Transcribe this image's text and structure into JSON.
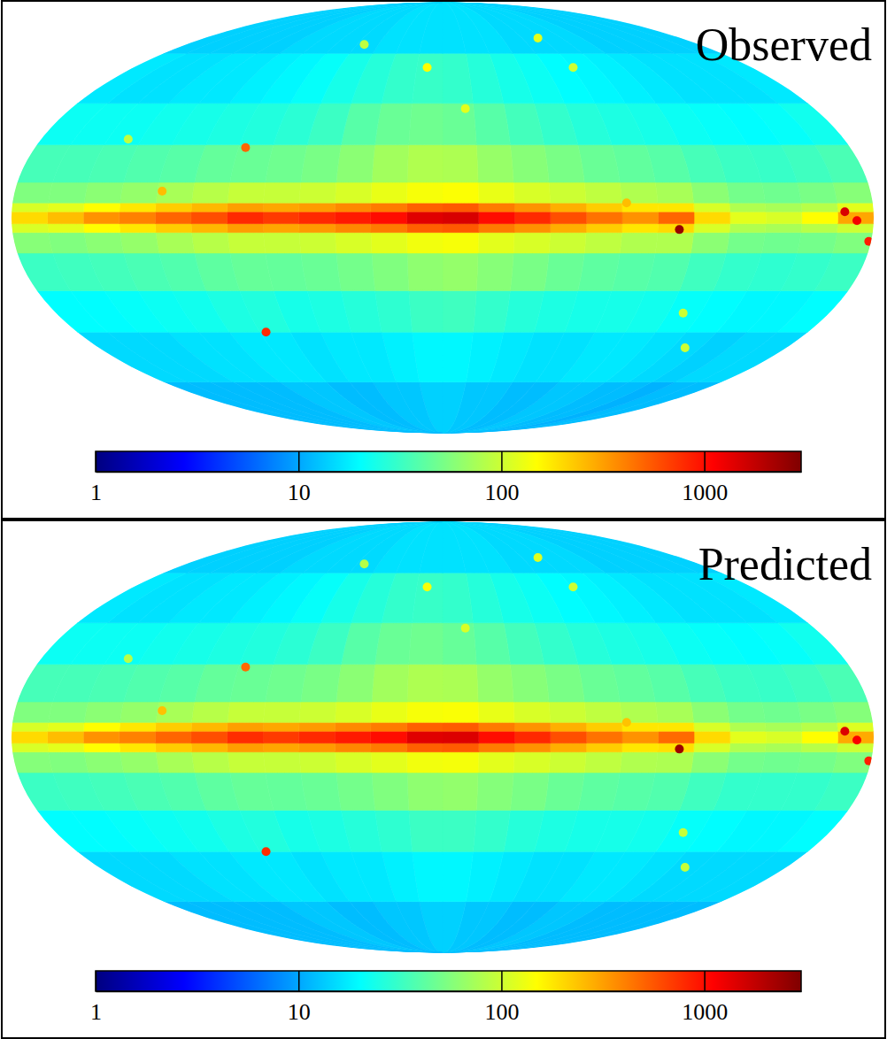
{
  "chart_data": [
    {
      "type": "heatmap",
      "title": "Observed",
      "log": true,
      "lon_edges": [
        -180,
        -165,
        -150,
        -135,
        -120,
        -105,
        -90,
        -75,
        -60,
        -45,
        -30,
        -15,
        0,
        15,
        30,
        45,
        60,
        75,
        90,
        105,
        120,
        135,
        150,
        165,
        180
      ],
      "lat_edges": [
        -90,
        -60,
        -40,
        -25,
        -12,
        -5,
        -2,
        2,
        5,
        12,
        25,
        40,
        60,
        90
      ],
      "cells": [
        [
          12,
          12,
          11,
          12,
          12,
          13,
          13,
          12,
          12,
          13,
          13,
          14,
          14,
          13,
          13,
          12,
          12,
          13,
          13,
          12,
          12,
          12,
          12,
          12
        ],
        [
          15,
          15,
          14,
          15,
          16,
          17,
          17,
          16,
          16,
          17,
          18,
          19,
          19,
          18,
          17,
          17,
          16,
          17,
          17,
          16,
          16,
          15,
          15,
          15
        ],
        [
          20,
          19,
          19,
          20,
          21,
          23,
          24,
          24,
          25,
          27,
          30,
          33,
          32,
          29,
          27,
          25,
          24,
          26,
          25,
          23,
          22,
          21,
          20,
          20
        ],
        [
          32,
          30,
          29,
          30,
          33,
          38,
          40,
          42,
          46,
          52,
          58,
          65,
          62,
          55,
          50,
          46,
          44,
          45,
          42,
          38,
          36,
          34,
          33,
          32
        ],
        [
          55,
          50,
          48,
          50,
          60,
          80,
          80,
          90,
          100,
          110,
          120,
          140,
          135,
          120,
          110,
          100,
          95,
          95,
          85,
          75,
          65,
          60,
          55,
          58
        ],
        [
          100,
          85,
          75,
          80,
          110,
          200,
          180,
          220,
          280,
          350,
          420,
          550,
          520,
          420,
          380,
          330,
          300,
          320,
          260,
          220,
          180,
          150,
          120,
          110
        ],
        [
          300,
          150,
          110,
          120,
          200,
          500,
          350,
          450,
          600,
          800,
          1000,
          1500,
          1400,
          1000,
          900,
          800,
          700,
          800,
          600,
          500,
          400,
          350,
          250,
          200
        ],
        [
          120,
          85,
          75,
          80,
          110,
          180,
          180,
          220,
          280,
          350,
          420,
          550,
          520,
          420,
          380,
          330,
          300,
          320,
          260,
          220,
          180,
          150,
          120,
          110
        ],
        [
          58,
          52,
          48,
          50,
          60,
          75,
          80,
          90,
          100,
          110,
          125,
          145,
          140,
          125,
          110,
          100,
          95,
          95,
          85,
          75,
          65,
          60,
          55,
          55
        ],
        [
          36,
          33,
          31,
          32,
          35,
          40,
          43,
          46,
          52,
          58,
          66,
          78,
          80,
          72,
          60,
          52,
          48,
          46,
          44,
          40,
          38,
          36,
          35,
          35
        ],
        [
          23,
          21,
          20,
          21,
          22,
          24,
          25,
          27,
          30,
          34,
          40,
          46,
          48,
          46,
          40,
          32,
          28,
          26,
          25,
          24,
          23,
          22,
          22,
          22
        ],
        [
          17,
          16,
          16,
          16,
          17,
          18,
          19,
          20,
          22,
          24,
          27,
          30,
          31,
          30,
          27,
          24,
          21,
          19,
          18,
          17,
          17,
          16,
          16,
          17
        ],
        [
          14,
          14,
          14,
          14,
          14,
          15,
          15,
          15,
          15,
          16,
          16,
          16,
          16,
          16,
          16,
          15,
          15,
          15,
          15,
          14,
          14,
          14,
          14,
          14
        ]
      ],
      "sources": [
        {
          "lon": 9,
          "lat": 54,
          "value": 150
        },
        {
          "lon": -11,
          "lat": 38,
          "value": 120
        },
        {
          "lon": -72,
          "lat": 67,
          "value": 120
        },
        {
          "lon": -76,
          "lat": 54,
          "value": 100
        },
        {
          "lon": 87,
          "lat": 24,
          "value": 500
        },
        {
          "lon": 118,
          "lat": 9,
          "value": 250
        },
        {
          "lon": 87,
          "lat": -40,
          "value": 800
        },
        {
          "lon": -77,
          "lat": 5,
          "value": 250
        },
        {
          "lon": -99,
          "lat": -4,
          "value": 2500
        },
        {
          "lon": -168,
          "lat": 2,
          "value": 1500
        },
        {
          "lon": -173,
          "lat": -1,
          "value": 1200
        },
        {
          "lon": -179,
          "lat": -8,
          "value": 900
        },
        {
          "lon": -112,
          "lat": -33,
          "value": 100
        },
        {
          "lon": -127,
          "lat": -46,
          "value": 100
        },
        {
          "lon": 141,
          "lat": 27,
          "value": 90
        },
        {
          "lon": 55,
          "lat": 64,
          "value": 90
        }
      ],
      "colorbar": {
        "range": [
          1,
          3000
        ],
        "ticks": [
          1,
          10,
          100,
          1000
        ]
      }
    },
    {
      "type": "heatmap",
      "title": "Predicted",
      "log": true,
      "lon_edges": [
        -180,
        -165,
        -150,
        -135,
        -120,
        -105,
        -90,
        -75,
        -60,
        -45,
        -30,
        -15,
        0,
        15,
        30,
        45,
        60,
        75,
        90,
        105,
        120,
        135,
        150,
        165,
        180
      ],
      "lat_edges": [
        -90,
        -60,
        -40,
        -25,
        -12,
        -5,
        -2,
        2,
        5,
        12,
        25,
        40,
        60,
        90
      ],
      "cells": [
        [
          12,
          12,
          12,
          12,
          12,
          13,
          13,
          12,
          12,
          13,
          13,
          14,
          14,
          13,
          13,
          12,
          12,
          13,
          13,
          12,
          12,
          12,
          12,
          12
        ],
        [
          15,
          15,
          15,
          15,
          16,
          17,
          17,
          16,
          16,
          17,
          18,
          19,
          19,
          18,
          17,
          17,
          16,
          17,
          17,
          16,
          16,
          15,
          15,
          15
        ],
        [
          20,
          19,
          19,
          20,
          21,
          23,
          24,
          24,
          25,
          27,
          30,
          32,
          32,
          29,
          27,
          25,
          24,
          26,
          25,
          23,
          22,
          21,
          20,
          20
        ],
        [
          32,
          30,
          30,
          30,
          33,
          38,
          40,
          42,
          46,
          52,
          57,
          64,
          62,
          55,
          50,
          46,
          44,
          45,
          42,
          38,
          36,
          34,
          33,
          32
        ],
        [
          55,
          50,
          48,
          50,
          60,
          78,
          80,
          90,
          100,
          110,
          120,
          138,
          135,
          120,
          110,
          100,
          95,
          95,
          85,
          75,
          65,
          60,
          55,
          57
        ],
        [
          100,
          85,
          75,
          80,
          110,
          190,
          180,
          220,
          280,
          350,
          420,
          540,
          520,
          420,
          380,
          330,
          300,
          320,
          260,
          220,
          180,
          150,
          120,
          110
        ],
        [
          290,
          150,
          110,
          120,
          200,
          480,
          350,
          450,
          600,
          800,
          1000,
          1450,
          1400,
          1000,
          900,
          800,
          700,
          780,
          600,
          500,
          400,
          350,
          250,
          200
        ],
        [
          115,
          85,
          75,
          80,
          110,
          180,
          180,
          220,
          280,
          350,
          420,
          540,
          520,
          420,
          380,
          330,
          300,
          320,
          260,
          220,
          180,
          150,
          120,
          110
        ],
        [
          57,
          52,
          48,
          50,
          60,
          75,
          80,
          90,
          100,
          110,
          124,
          143,
          140,
          125,
          110,
          100,
          95,
          95,
          85,
          75,
          65,
          60,
          55,
          55
        ],
        [
          36,
          33,
          31,
          32,
          35,
          40,
          43,
          46,
          52,
          58,
          65,
          77,
          79,
          72,
          60,
          52,
          48,
          46,
          44,
          40,
          38,
          36,
          35,
          35
        ],
        [
          23,
          21,
          20,
          21,
          22,
          24,
          25,
          27,
          30,
          34,
          40,
          45,
          48,
          46,
          40,
          32,
          28,
          26,
          25,
          24,
          23,
          22,
          22,
          22
        ],
        [
          17,
          16,
          16,
          16,
          17,
          18,
          19,
          20,
          22,
          24,
          27,
          30,
          31,
          30,
          27,
          24,
          21,
          19,
          18,
          17,
          17,
          16,
          16,
          17
        ],
        [
          14,
          14,
          14,
          14,
          14,
          15,
          15,
          15,
          15,
          16,
          16,
          16,
          16,
          16,
          16,
          15,
          15,
          15,
          15,
          14,
          14,
          14,
          14,
          14
        ]
      ],
      "sources": [
        {
          "lon": 9,
          "lat": 54,
          "value": 140
        },
        {
          "lon": -11,
          "lat": 38,
          "value": 110
        },
        {
          "lon": -72,
          "lat": 67,
          "value": 115
        },
        {
          "lon": -76,
          "lat": 54,
          "value": 100
        },
        {
          "lon": 87,
          "lat": 24,
          "value": 480
        },
        {
          "lon": 118,
          "lat": 9,
          "value": 240
        },
        {
          "lon": 87,
          "lat": -40,
          "value": 780
        },
        {
          "lon": -77,
          "lat": 5,
          "value": 240
        },
        {
          "lon": -99,
          "lat": -4,
          "value": 2400
        },
        {
          "lon": -168,
          "lat": 2,
          "value": 1450
        },
        {
          "lon": -173,
          "lat": -1,
          "value": 1150
        },
        {
          "lon": -179,
          "lat": -8,
          "value": 880
        },
        {
          "lon": -112,
          "lat": -33,
          "value": 95
        },
        {
          "lon": -127,
          "lat": -46,
          "value": 95
        },
        {
          "lon": 141,
          "lat": 27,
          "value": 85
        },
        {
          "lon": 55,
          "lat": 64,
          "value": 85
        }
      ],
      "colorbar": {
        "range": [
          1,
          3000
        ],
        "ticks": [
          1,
          10,
          100,
          1000
        ]
      }
    }
  ]
}
